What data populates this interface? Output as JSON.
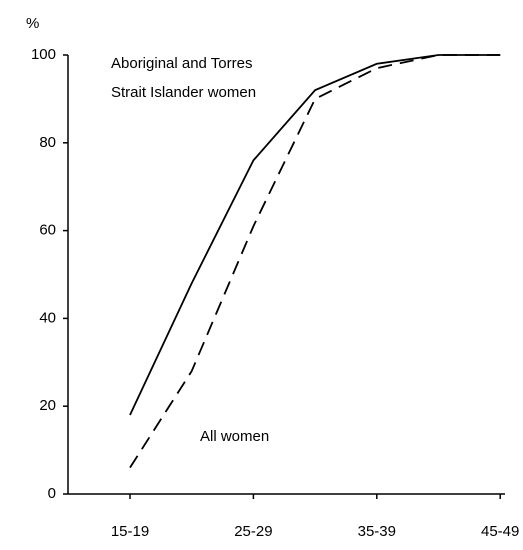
{
  "chart_data": {
    "type": "line",
    "y_label": "%",
    "categories": [
      "15-19",
      null,
      "25-29",
      null,
      "35-39",
      null,
      "45-49"
    ],
    "series": [
      {
        "name": "Aboriginal and Torres Strait Islander women",
        "color": "#000000",
        "dash": false,
        "values": [
          18,
          48,
          76,
          92,
          98,
          100,
          100
        ]
      },
      {
        "name": "All women",
        "color": "#000000",
        "dash": true,
        "values": [
          6,
          28,
          61,
          90,
          97,
          100,
          100
        ]
      }
    ],
    "ylim": [
      0,
      100
    ],
    "yticks": [
      0,
      20,
      40,
      60,
      80,
      100
    ],
    "grid": false
  }
}
